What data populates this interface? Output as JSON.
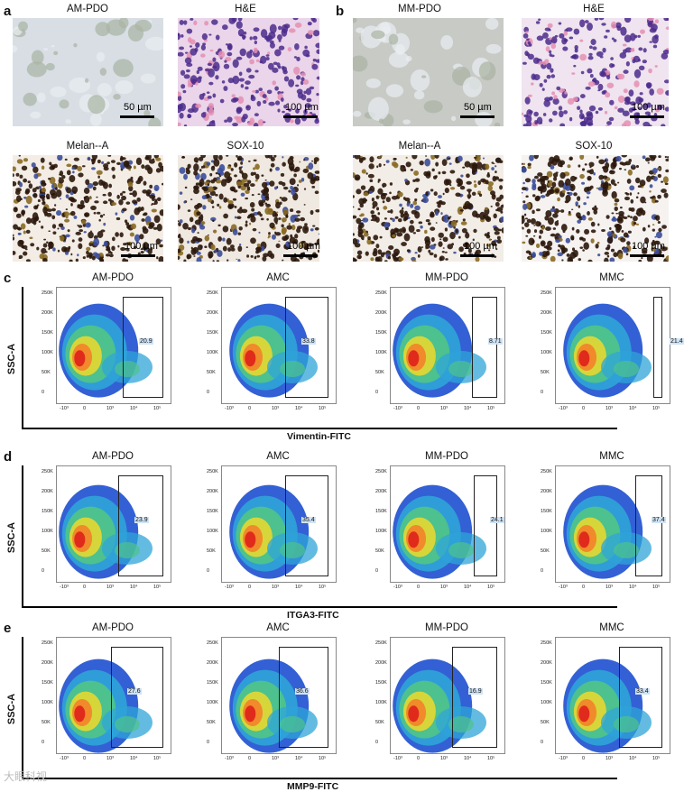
{
  "panel_a": {
    "letter": "a",
    "titles": [
      "AM-PDO",
      "H&E",
      "Melan--A",
      "SOX-10"
    ],
    "scales": [
      "50 µm",
      "100 µm",
      "100 µm",
      "100 µm"
    ]
  },
  "panel_b": {
    "letter": "b",
    "titles": [
      "MM-PDO",
      "H&E",
      "Melan--A",
      "SOX-10"
    ],
    "scales": [
      "50 µm",
      "100 µm",
      "100 µm",
      "100 µm"
    ]
  },
  "rows": [
    {
      "letter": "c",
      "xlabel": "Vimentin-FITC",
      "ylabel": "SSC-A",
      "plots": [
        {
          "title": "AM-PDO",
          "pct": "20.9"
        },
        {
          "title": "AMC",
          "pct": "33.8"
        },
        {
          "title": "MM-PDO",
          "pct": "8.71"
        },
        {
          "title": "MMC",
          "pct": "21.4"
        }
      ]
    },
    {
      "letter": "d",
      "xlabel": "ITGA3-FITC",
      "ylabel": "SSC-A",
      "plots": [
        {
          "title": "AM-PDO",
          "pct": "23.9"
        },
        {
          "title": "AMC",
          "pct": "35.4"
        },
        {
          "title": "MM-PDO",
          "pct": "24.1"
        },
        {
          "title": "MMC",
          "pct": "37.4"
        }
      ]
    },
    {
      "letter": "e",
      "xlabel": "MMP9-FITC",
      "ylabel": "SSC-A",
      "plots": [
        {
          "title": "AM-PDO",
          "pct": "27.6"
        },
        {
          "title": "AMC",
          "pct": "36.6"
        },
        {
          "title": "MM-PDO",
          "pct": "16.9"
        },
        {
          "title": "MMC",
          "pct": "33.4"
        }
      ]
    }
  ],
  "yticks": [
    "250K",
    "200K",
    "150K",
    "100K",
    "50K",
    "0"
  ],
  "xticks": [
    "-10³",
    "0",
    "10³",
    "10⁴",
    "10⁵"
  ],
  "watermark": "大眼科视",
  "colors": {
    "he": "#c97fbf",
    "ihc": "#3a2110",
    "organoid": "#d6dde3"
  }
}
